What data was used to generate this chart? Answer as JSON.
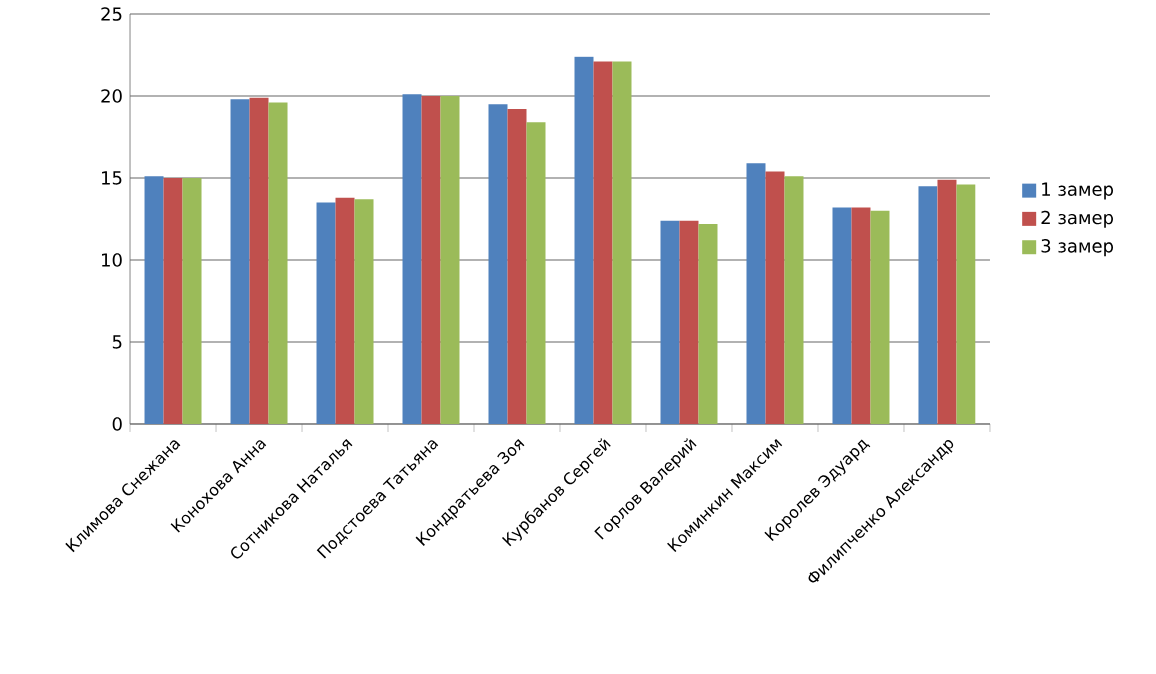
{
  "chart_data": {
    "type": "bar",
    "categories": [
      "Климова Снежана",
      "Конохова Анна",
      "Сотникова Наталья",
      "Подстоева Татьяна",
      "Кондратьева Зоя",
      "Курбанов Сергей",
      "Горлов Валерий",
      "Коминкин Максим",
      "Королев Эдуард",
      "Филипченко Александр"
    ],
    "series": [
      {
        "name": "1 замер",
        "color": "#4f81bd",
        "values": [
          15.1,
          19.8,
          13.5,
          20.1,
          19.5,
          22.4,
          12.4,
          15.9,
          13.2,
          14.5
        ]
      },
      {
        "name": "2 замер",
        "color": "#c0504d",
        "values": [
          15.0,
          19.9,
          13.8,
          20.0,
          19.2,
          22.1,
          12.4,
          15.4,
          13.2,
          14.9
        ]
      },
      {
        "name": "3 замер",
        "color": "#9bbb59",
        "values": [
          15.0,
          19.6,
          13.7,
          20.0,
          18.4,
          22.1,
          12.2,
          15.1,
          13.0,
          14.6
        ]
      }
    ],
    "ylim": [
      0,
      25
    ],
    "yticks": [
      0,
      5,
      10,
      15,
      20,
      25
    ],
    "grid": "y",
    "legend": "right"
  }
}
